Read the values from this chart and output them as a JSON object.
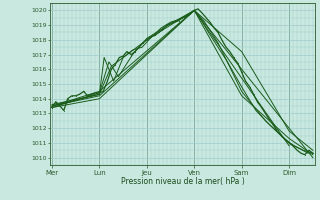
{
  "title": "",
  "xlabel": "Pression niveau de la mer( hPa )",
  "ylim": [
    1009.5,
    1020.5
  ],
  "yticks": [
    1010,
    1011,
    1012,
    1013,
    1014,
    1015,
    1016,
    1017,
    1018,
    1019,
    1020
  ],
  "day_labels": [
    "Mer",
    "Lun",
    "Jeu",
    "Ven",
    "Sam",
    "Dim"
  ],
  "day_positions": [
    0,
    1,
    2,
    3,
    4,
    5
  ],
  "xlim": [
    -0.05,
    5.55
  ],
  "bg_color": "#c8e8e0",
  "grid_color": "#a0cccc",
  "line_color": "#1a5c1a",
  "tick_color": "#2d5a2d",
  "label_color": "#1a4a1a",
  "series": [
    [
      0.0,
      1013.4,
      0.08,
      1013.8,
      0.17,
      1013.5,
      0.25,
      1013.2,
      0.33,
      1014.0,
      0.42,
      1014.2,
      0.5,
      1014.2,
      0.58,
      1014.3,
      0.67,
      1014.5,
      0.75,
      1014.2,
      0.83,
      1014.3,
      0.92,
      1014.4,
      1.0,
      1014.4,
      1.08,
      1014.5,
      1.17,
      1015.2,
      1.25,
      1016.0,
      1.33,
      1016.3,
      1.42,
      1016.8,
      1.5,
      1016.9,
      1.58,
      1017.2,
      1.67,
      1017.0,
      1.75,
      1017.2,
      1.83,
      1017.5,
      1.92,
      1017.8,
      2.0,
      1018.0,
      2.08,
      1018.2,
      2.17,
      1018.3,
      2.25,
      1018.5,
      2.33,
      1018.7,
      2.42,
      1019.0,
      2.5,
      1019.1,
      2.58,
      1019.2,
      2.67,
      1019.3,
      2.75,
      1019.5,
      2.83,
      1019.6,
      2.92,
      1019.8,
      3.0,
      1020.0,
      3.08,
      1020.1,
      3.17,
      1019.8,
      3.25,
      1019.5,
      3.33,
      1019.2,
      3.42,
      1018.8,
      3.5,
      1018.5,
      3.58,
      1018.0,
      3.67,
      1017.5,
      3.75,
      1017.2,
      3.83,
      1016.8,
      3.92,
      1016.4,
      4.0,
      1015.8,
      4.08,
      1015.2,
      4.17,
      1014.8,
      4.25,
      1014.3,
      4.33,
      1013.8,
      4.42,
      1013.4,
      4.5,
      1013.0,
      4.58,
      1012.6,
      4.67,
      1012.2,
      4.75,
      1011.8,
      4.83,
      1011.5,
      4.92,
      1011.2,
      5.0,
      1011.0,
      5.08,
      1010.8,
      5.17,
      1010.5,
      5.25,
      1010.3,
      5.33,
      1010.2,
      5.42,
      1010.5,
      5.5,
      1010.3
    ],
    [
      0.0,
      1013.5,
      1.0,
      1014.3,
      1.1,
      1016.8,
      1.3,
      1015.2,
      1.5,
      1016.8,
      1.7,
      1017.3,
      1.9,
      1017.5,
      2.1,
      1018.2,
      2.3,
      1018.8,
      2.5,
      1019.2,
      2.7,
      1019.4,
      2.9,
      1019.7,
      3.0,
      1020.0,
      3.1,
      1019.6,
      3.3,
      1018.5,
      3.5,
      1017.5,
      3.7,
      1016.5,
      4.0,
      1014.8,
      4.3,
      1013.2,
      4.6,
      1012.2,
      4.9,
      1011.3,
      5.1,
      1010.8,
      5.3,
      1010.5,
      5.5,
      1010.3
    ],
    [
      0.0,
      1013.4,
      1.0,
      1014.4,
      1.2,
      1016.5,
      1.4,
      1015.5,
      1.7,
      1017.0,
      2.0,
      1018.1,
      2.5,
      1019.1,
      3.0,
      1020.0,
      3.2,
      1019.3,
      3.5,
      1017.8,
      4.0,
      1014.5,
      4.5,
      1012.5,
      5.0,
      1011.0,
      5.4,
      1010.3
    ],
    [
      0.0,
      1013.6,
      1.0,
      1014.3,
      1.25,
      1016.2,
      2.0,
      1018.0,
      3.0,
      1020.0,
      4.0,
      1014.2,
      5.0,
      1011.3,
      5.5,
      1010.2
    ],
    [
      0.0,
      1013.5,
      1.0,
      1014.2,
      3.0,
      1020.0,
      4.0,
      1017.2,
      5.0,
      1011.8,
      5.5,
      1010.5
    ],
    [
      0.0,
      1013.4,
      1.0,
      1014.0,
      3.0,
      1020.0,
      5.0,
      1010.8
    ],
    [
      0.0,
      1013.5,
      1.0,
      1014.5,
      3.0,
      1020.0,
      5.5,
      1010.0
    ]
  ]
}
